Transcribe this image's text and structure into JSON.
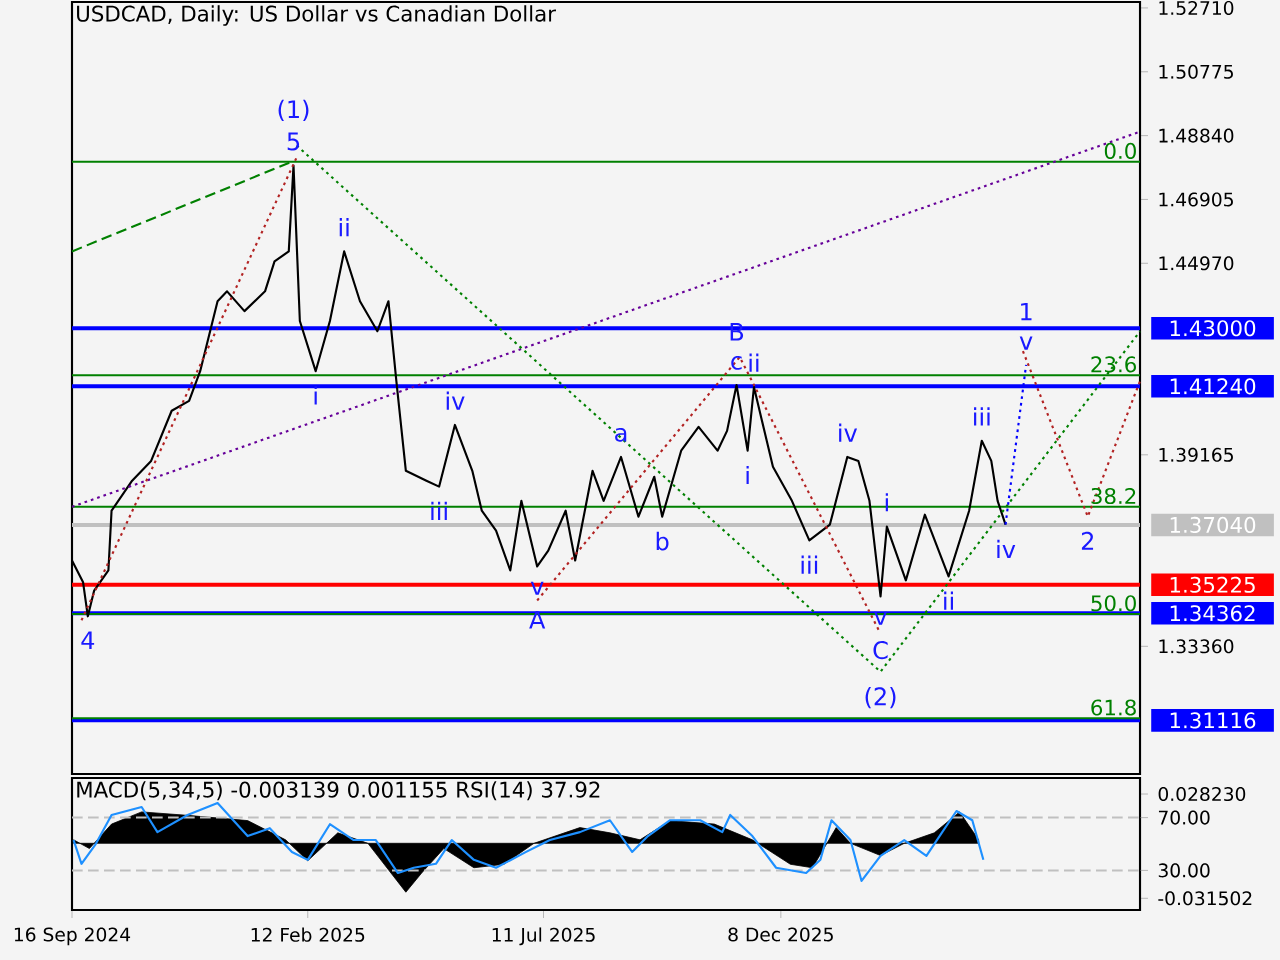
{
  "chart_data": [
    {
      "type": "line",
      "title": "USDCAD, Daily:  US Dollar vs Canadian Dollar",
      "xlim": [
        "2024-09-16",
        "2026-07-23"
      ],
      "ylim": [
        1.2949,
        1.5289
      ],
      "yticks": [
        {
          "value": 1.5271,
          "label": "1.52710"
        },
        {
          "value": 1.50775,
          "label": "1.50775"
        },
        {
          "value": 1.4884,
          "label": "1.48840"
        },
        {
          "value": 1.46905,
          "label": "1.46905"
        },
        {
          "value": 1.4497,
          "label": "1.44970"
        },
        {
          "value": 1.39165,
          "label": "1.39165"
        },
        {
          "value": 1.3336,
          "label": "1.33360"
        }
      ],
      "tick_labels": "y",
      "series": [
        {
          "color": "#000000",
          "line_style": "solid",
          "x": [
            "2024-09-16",
            "2024-09-23",
            "2024-09-26",
            "2024-09-30",
            "2024-10-09",
            "2024-10-11",
            "2024-10-24",
            "2024-11-05",
            "2024-11-18",
            "2024-11-29",
            "2024-12-06",
            "2024-12-17",
            "2024-12-23",
            "2025-01-03",
            "2025-01-16",
            "2025-01-22",
            "2025-01-31",
            "2025-02-03",
            "2025-02-07",
            "2025-02-17",
            "2025-02-26",
            "2025-03-07",
            "2025-03-17",
            "2025-03-28",
            "2025-04-04",
            "2025-04-09",
            "2025-04-15",
            "2025-04-28",
            "2025-05-06",
            "2025-05-16",
            "2025-05-27",
            "2025-06-02",
            "2025-06-11",
            "2025-06-20",
            "2025-06-27",
            "2025-07-07",
            "2025-07-14",
            "2025-07-25",
            "2025-07-31",
            "2025-08-11",
            "2025-08-18",
            "2025-08-29",
            "2025-09-09",
            "2025-09-19",
            "2025-09-24",
            "2025-10-06",
            "2025-10-17",
            "2025-10-29",
            "2025-11-04",
            "2025-11-10",
            "2025-11-17",
            "2025-11-21",
            "2025-12-03",
            "2025-12-15",
            "2025-12-26",
            "2026-01-08",
            "2026-01-19",
            "2026-01-26",
            "2026-02-02",
            "2026-02-09",
            "2026-02-13",
            "2026-02-25",
            "2026-03-09",
            "2026-03-24",
            "2026-04-06",
            "2026-04-14",
            "2026-04-20",
            "2026-04-24",
            "2026-04-29"
          ],
          "values": [
            1.3596,
            1.353,
            1.3427,
            1.3505,
            1.3566,
            1.3747,
            1.3838,
            1.3898,
            1.405,
            1.408,
            1.417,
            1.4382,
            1.4412,
            1.4352,
            1.4412,
            1.4503,
            1.4533,
            1.4793,
            1.4322,
            1.417,
            1.4322,
            1.4533,
            1.4382,
            1.4291,
            1.4382,
            1.414,
            1.3868,
            1.3838,
            1.382,
            1.4007,
            1.3868,
            1.3747,
            1.3687,
            1.3566,
            1.3777,
            1.3578,
            1.3626,
            1.3747,
            1.3596,
            1.3868,
            1.3777,
            1.391,
            1.3729,
            1.385,
            1.3729,
            1.3929,
            1.4001,
            1.3929,
            1.3989,
            1.4128,
            1.3929,
            1.4122,
            1.388,
            1.3777,
            1.3657,
            1.3705,
            1.391,
            1.3898,
            1.3777,
            1.3487,
            1.3699,
            1.3536,
            1.3735,
            1.3548,
            1.3747,
            1.3959,
            1.3898,
            1.3777,
            1.3705
          ]
        },
        {
          "color": "#660099",
          "line_style": "dotted",
          "x": [
            "2024-09-16",
            "2026-07-23"
          ],
          "values": [
            1.3759,
            1.4896
          ]
        },
        {
          "color": "#008000",
          "line_style": "dashed",
          "x": [
            "2024-09-16",
            "2025-02-02"
          ],
          "values": [
            1.4533,
            1.4805
          ]
        },
        {
          "color": "#008000",
          "line_style": "dotted",
          "x": [
            "2025-02-05",
            "2026-02-09",
            "2026-07-23"
          ],
          "values": [
            1.4854,
            1.3259,
            1.4291
          ]
        },
        {
          "color": "#b22222",
          "line_style": "dotted",
          "x": [
            "2024-09-22",
            "2025-02-05"
          ],
          "values": [
            1.3415,
            1.4818
          ]
        },
        {
          "color": "#b22222",
          "line_style": "dotted",
          "x": [
            "2025-07-07",
            "2025-11-12",
            "2026-02-08"
          ],
          "values": [
            1.3475,
            1.4213,
            1.3384
          ]
        },
        {
          "color": "#b22222",
          "line_style": "dotted",
          "x": [
            "2026-05-10",
            "2026-06-20",
            "2026-07-23"
          ],
          "values": [
            1.4231,
            1.3729,
            1.414
          ]
        },
        {
          "color": "#0000ff",
          "line_style": "dotted",
          "x": [
            "2026-04-29",
            "2026-05-12"
          ],
          "values": [
            1.3705,
            1.4189
          ]
        }
      ],
      "ref_lines": [
        {
          "axis": "y",
          "value": 1.43,
          "label": "1.43000",
          "color": "#0000ff"
        },
        {
          "axis": "y",
          "value": 1.4124,
          "label": "1.41240",
          "color": "#0000ff"
        },
        {
          "axis": "y",
          "value": 1.3704,
          "label": "1.37040",
          "color": "#c0c0c0"
        },
        {
          "axis": "y",
          "value": 1.35225,
          "label": "1.35225",
          "color": "#ff0000"
        },
        {
          "axis": "y",
          "value": 1.34362,
          "label": "1.34362",
          "color": "#0000ff"
        },
        {
          "axis": "y",
          "value": 1.31116,
          "label": "1.31116",
          "color": "#0000ff"
        },
        {
          "axis": "y",
          "value": 1.4805,
          "color": "#008000"
        },
        {
          "axis": "y",
          "value": 1.4158,
          "color": "#008000"
        },
        {
          "axis": "y",
          "value": 1.3759,
          "color": "#008000"
        },
        {
          "axis": "y",
          "value": 1.3434,
          "color": "#008000"
        },
        {
          "axis": "y",
          "value": 1.3118,
          "color": "#008000"
        }
      ],
      "annotations": [
        {
          "text": "0.0",
          "x": "2026-07-23",
          "y": 1.4805
        },
        {
          "text": "23.6",
          "x": "2026-07-23",
          "y": 1.4158
        },
        {
          "text": "38.2",
          "x": "2026-07-23",
          "y": 1.3759
        },
        {
          "text": "50.0",
          "x": "2026-07-23",
          "y": 1.3434
        },
        {
          "text": "61.8",
          "x": "2026-07-23",
          "y": 1.3118
        },
        {
          "text": "4",
          "x": "2024-09-26",
          "y": 1.3427
        },
        {
          "text": "5",
          "x": "2025-02-03",
          "y": 1.4793
        },
        {
          "text": "(1)",
          "x": "2025-02-03",
          "y": 1.4793
        },
        {
          "text": "i",
          "x": "2025-02-17",
          "y": 1.417
        },
        {
          "text": "ii",
          "x": "2025-03-07",
          "y": 1.4533
        },
        {
          "text": "iii",
          "x": "2025-05-06",
          "y": 1.382
        },
        {
          "text": "iv",
          "x": "2025-05-16",
          "y": 1.4007
        },
        {
          "text": "v",
          "x": "2025-07-07",
          "y": 1.3578
        },
        {
          "text": "A",
          "x": "2025-07-07",
          "y": 1.3578
        },
        {
          "text": "a",
          "x": "2025-08-29",
          "y": 1.391
        },
        {
          "text": "b",
          "x": "2025-09-24",
          "y": 1.3729
        },
        {
          "text": "c",
          "x": "2025-11-10",
          "y": 1.4128
        },
        {
          "text": "B",
          "x": "2025-11-10",
          "y": 1.4128
        },
        {
          "text": "i",
          "x": "2025-11-17",
          "y": 1.3929
        },
        {
          "text": "ii",
          "x": "2025-11-21",
          "y": 1.4122
        },
        {
          "text": "iii",
          "x": "2025-12-26",
          "y": 1.3657
        },
        {
          "text": "iv",
          "x": "2026-01-19",
          "y": 1.391
        },
        {
          "text": "v",
          "x": "2026-02-09",
          "y": 1.3487
        },
        {
          "text": "C",
          "x": "2026-02-09",
          "y": 1.3487
        },
        {
          "text": "(2)",
          "x": "2026-02-09",
          "y": 1.3259
        },
        {
          "text": "i",
          "x": "2026-02-13",
          "y": 1.3699
        },
        {
          "text": "ii",
          "x": "2026-03-24",
          "y": 1.3548
        },
        {
          "text": "iii",
          "x": "2026-04-14",
          "y": 1.3959
        },
        {
          "text": "iv",
          "x": "2026-04-29",
          "y": 1.3705
        },
        {
          "text": "v",
          "x": "2026-05-12",
          "y": 1.4189
        },
        {
          "text": "1",
          "x": "2026-05-12",
          "y": 1.4189
        },
        {
          "text": "2",
          "x": "2026-06-20",
          "y": 1.3729
        }
      ]
    },
    {
      "type": "area",
      "title": "MACD(5,34,5) -0.003139 0.001155 RSI(14) 37.92",
      "xlim": [
        "2024-09-16",
        "2026-07-23"
      ],
      "ylim": [
        -0.0382,
        0.0374
      ],
      "y2lim": [
        0,
        100
      ],
      "xticks": [
        {
          "value": "2024-09-16",
          "label": "16 Sep 2024"
        },
        {
          "value": "2025-02-12",
          "label": "12 Feb 2025"
        },
        {
          "value": "2025-07-11",
          "label": "11 Jul 2025"
        },
        {
          "value": "2025-12-08",
          "label": "8 Dec 2025"
        }
      ],
      "yticks": [
        {
          "value": 0.02823,
          "label": "0.028230"
        },
        {
          "value": -0.031502,
          "label": "-0.031502"
        }
      ],
      "y2ticks": [
        {
          "value": 70,
          "label": "70.00"
        },
        {
          "value": 30,
          "label": "30.00"
        }
      ],
      "series": [
        {
          "type": "area",
          "color": "#000000",
          "x": [
            "2024-09-17",
            "2024-09-27",
            "2024-10-11",
            "2024-10-30",
            "2024-11-28",
            "2025-01-05",
            "2025-01-29",
            "2025-02-12",
            "2025-03-03",
            "2025-03-22",
            "2025-04-15",
            "2025-04-25",
            "2025-05-09",
            "2025-05-28",
            "2025-06-16",
            "2025-07-05",
            "2025-08-03",
            "2025-08-22",
            "2025-09-10",
            "2025-09-29",
            "2025-10-27",
            "2025-11-20",
            "2025-12-14",
            "2025-12-28",
            "2026-01-12",
            "2026-01-21",
            "2026-02-09",
            "2026-02-24",
            "2026-03-15",
            "2026-03-31",
            "2026-04-12"
          ],
          "values": [
            0.002,
            -0.003,
            0.011,
            0.018,
            0.016,
            0.013,
            0.002,
            -0.01,
            0.006,
            0.0,
            -0.028,
            -0.017,
            -0.003,
            -0.014,
            -0.012,
            0.0,
            0.009,
            0.006,
            0.002,
            0.013,
            0.011,
            0.002,
            -0.012,
            -0.014,
            0.009,
            0.0,
            -0.007,
            0.0,
            0.006,
            0.018,
            0.002
          ]
        },
        {
          "type": "line",
          "axis": "y2",
          "color": "#1e90ff",
          "x": [
            "2024-09-17",
            "2024-09-22",
            "2024-10-01",
            "2024-10-11",
            "2024-10-30",
            "2024-11-09",
            "2024-11-28",
            "2024-12-17",
            "2025-01-05",
            "2025-01-19",
            "2025-02-02",
            "2025-02-12",
            "2025-02-26",
            "2025-03-13",
            "2025-03-27",
            "2025-04-10",
            "2025-04-20",
            "2025-05-04",
            "2025-05-14",
            "2025-05-28",
            "2025-06-11",
            "2025-06-30",
            "2025-07-15",
            "2025-08-03",
            "2025-08-22",
            "2025-09-05",
            "2025-09-15",
            "2025-09-29",
            "2025-10-18",
            "2025-11-01",
            "2025-11-06",
            "2025-11-20",
            "2025-12-05",
            "2025-12-24",
            "2026-01-02",
            "2026-01-09",
            "2026-01-21",
            "2026-01-28",
            "2026-02-09",
            "2026-02-24",
            "2026-03-10",
            "2026-03-20",
            "2026-03-29",
            "2026-04-08",
            "2026-04-15"
          ],
          "values": [
            53,
            35,
            50,
            72,
            78,
            59,
            72,
            81,
            56,
            62,
            44,
            38,
            65,
            53,
            53,
            28,
            32,
            35,
            53,
            38,
            32,
            44,
            53,
            59,
            68,
            44,
            56,
            68,
            68,
            59,
            72,
            56,
            32,
            28,
            38,
            68,
            53,
            22,
            41,
            53,
            41,
            59,
            75,
            68,
            38
          ]
        }
      ],
      "ref_lines": [
        {
          "axis": "y2",
          "value": 70,
          "color": "#c0c0c0",
          "line_style": "dashed"
        },
        {
          "axis": "y2",
          "value": 30,
          "color": "#c0c0c0",
          "line_style": "dashed"
        }
      ]
    }
  ]
}
